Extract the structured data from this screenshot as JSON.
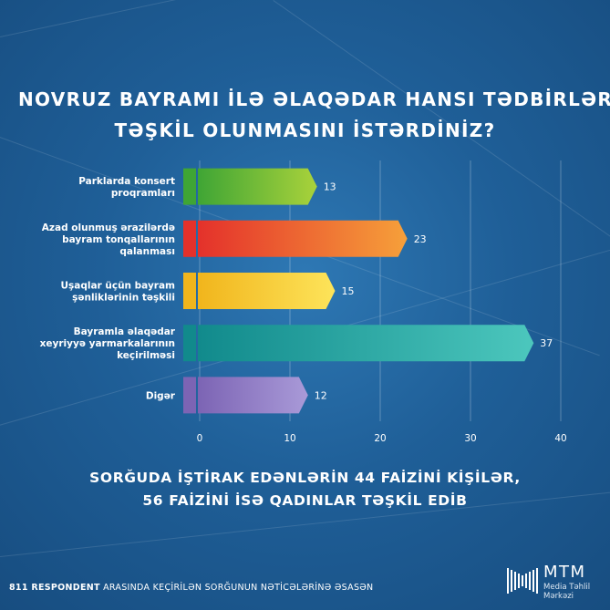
{
  "title_lines": [
    "NOVRUZ BAYRAMI İLƏ ƏLAQƏDAR HANSI TƏDBİRLƏRİN",
    "TƏŞKİL OLUNMASINI İSTƏRDİNİZ?"
  ],
  "subtitle_lines": [
    "SORĞUDA İŞTİRAK EDƏNLƏRİN 44 FAİZİNİ KİŞİLƏR,",
    "56 FAİZİNİ İSƏ QADINLAR TƏŞKİL EDİB"
  ],
  "footer": {
    "bold": "811 RESPONDENT",
    "rest": " ARASINDA KEÇİRİLƏN SORĞUNUN NƏTİCƏLƏRİNƏ ƏSASƏN"
  },
  "logo": {
    "name": "MTM",
    "sub1": "Media Təhlil",
    "sub2": "Mərkəzi"
  },
  "chart_data": {
    "type": "bar",
    "orientation": "horizontal",
    "categories": [
      [
        "Parklarda konsert",
        "proqramları"
      ],
      [
        "Azad olunmuş ərazilərdə",
        "bayram tonqallarının",
        "qalanması"
      ],
      [
        "Uşaqlar üçün bayram",
        "şənliklərinin təşkili"
      ],
      [
        "Bayramla əlaqədar",
        "xeyriyyə yarmarkalarının",
        "keçirilməsi"
      ],
      [
        "Digər"
      ]
    ],
    "values": [
      13,
      23,
      15,
      37,
      12
    ],
    "xlim": [
      0,
      40
    ],
    "xticks": [
      0,
      10,
      20,
      30,
      40
    ],
    "grid": true,
    "colors": [
      [
        "#3fa535",
        "#a9d23b"
      ],
      [
        "#e4312b",
        "#f6a03a"
      ],
      [
        "#f1b51c",
        "#fde45a"
      ],
      [
        "#118a8c",
        "#4cc7bd"
      ],
      [
        "#7c64b4",
        "#a99ad8"
      ]
    ]
  }
}
